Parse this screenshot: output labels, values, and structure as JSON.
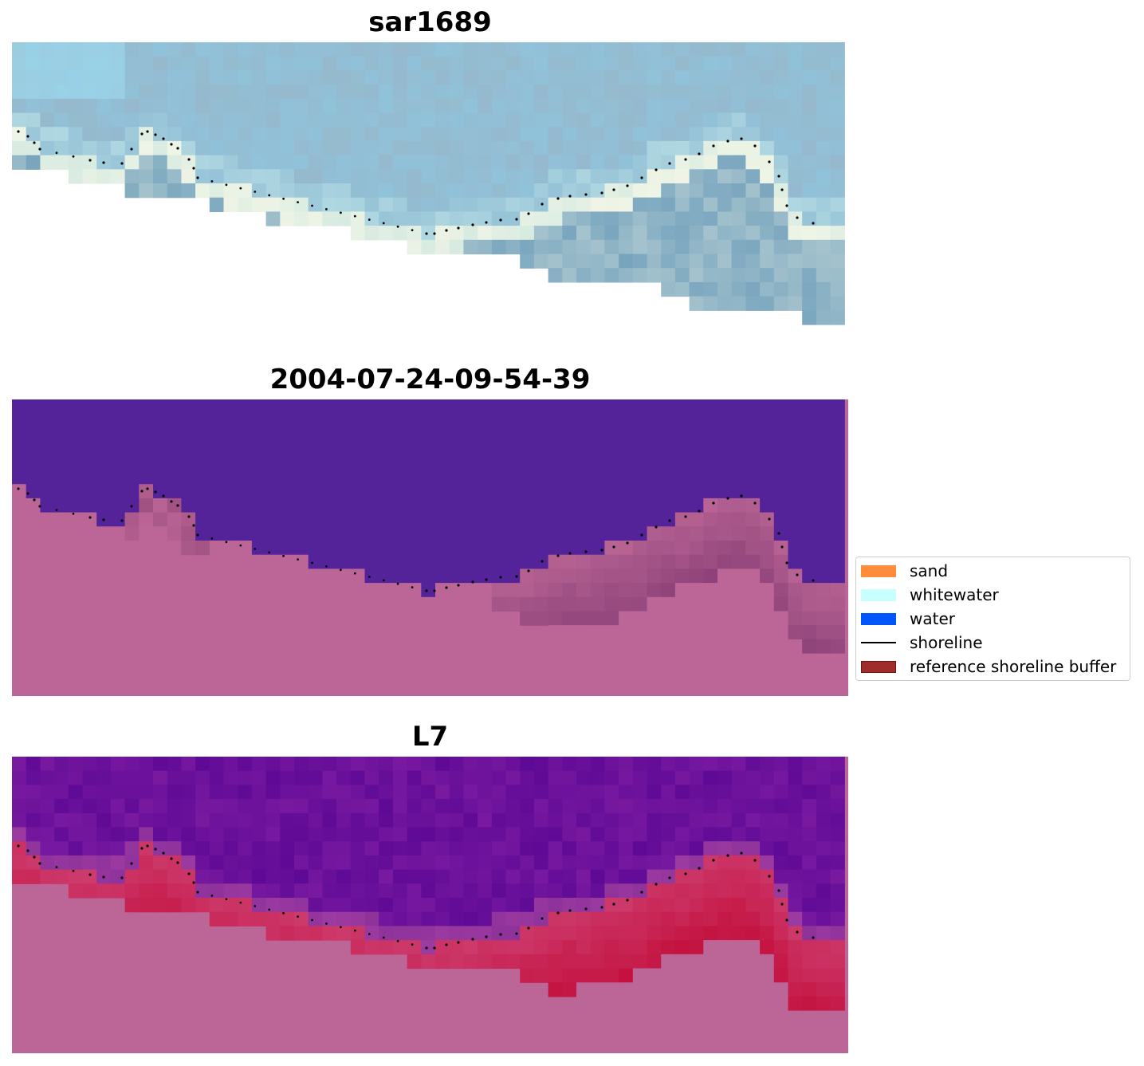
{
  "panels": [
    {
      "title": "sar1689",
      "kind": "rgb"
    },
    {
      "title": "2004-07-24-09-54-39",
      "kind": "classes"
    },
    {
      "title": "L7",
      "kind": "index"
    }
  ],
  "legend": {
    "items": [
      {
        "label": "sand",
        "type": "patch",
        "color": "#ff8c3a"
      },
      {
        "label": "whitewater",
        "type": "patch",
        "color": "#c8ffff"
      },
      {
        "label": "water",
        "type": "patch",
        "color": "#0055ff"
      },
      {
        "label": "shoreline",
        "type": "line",
        "color": "#000000"
      },
      {
        "label": "reference shoreline buffer",
        "type": "patch",
        "color": "#a02c2c",
        "edge": "#6b1a1a"
      }
    ]
  },
  "colors": {
    "water_class": "#54239a",
    "land_nodata": "#bb6696",
    "shoreline": "#000000"
  }
}
